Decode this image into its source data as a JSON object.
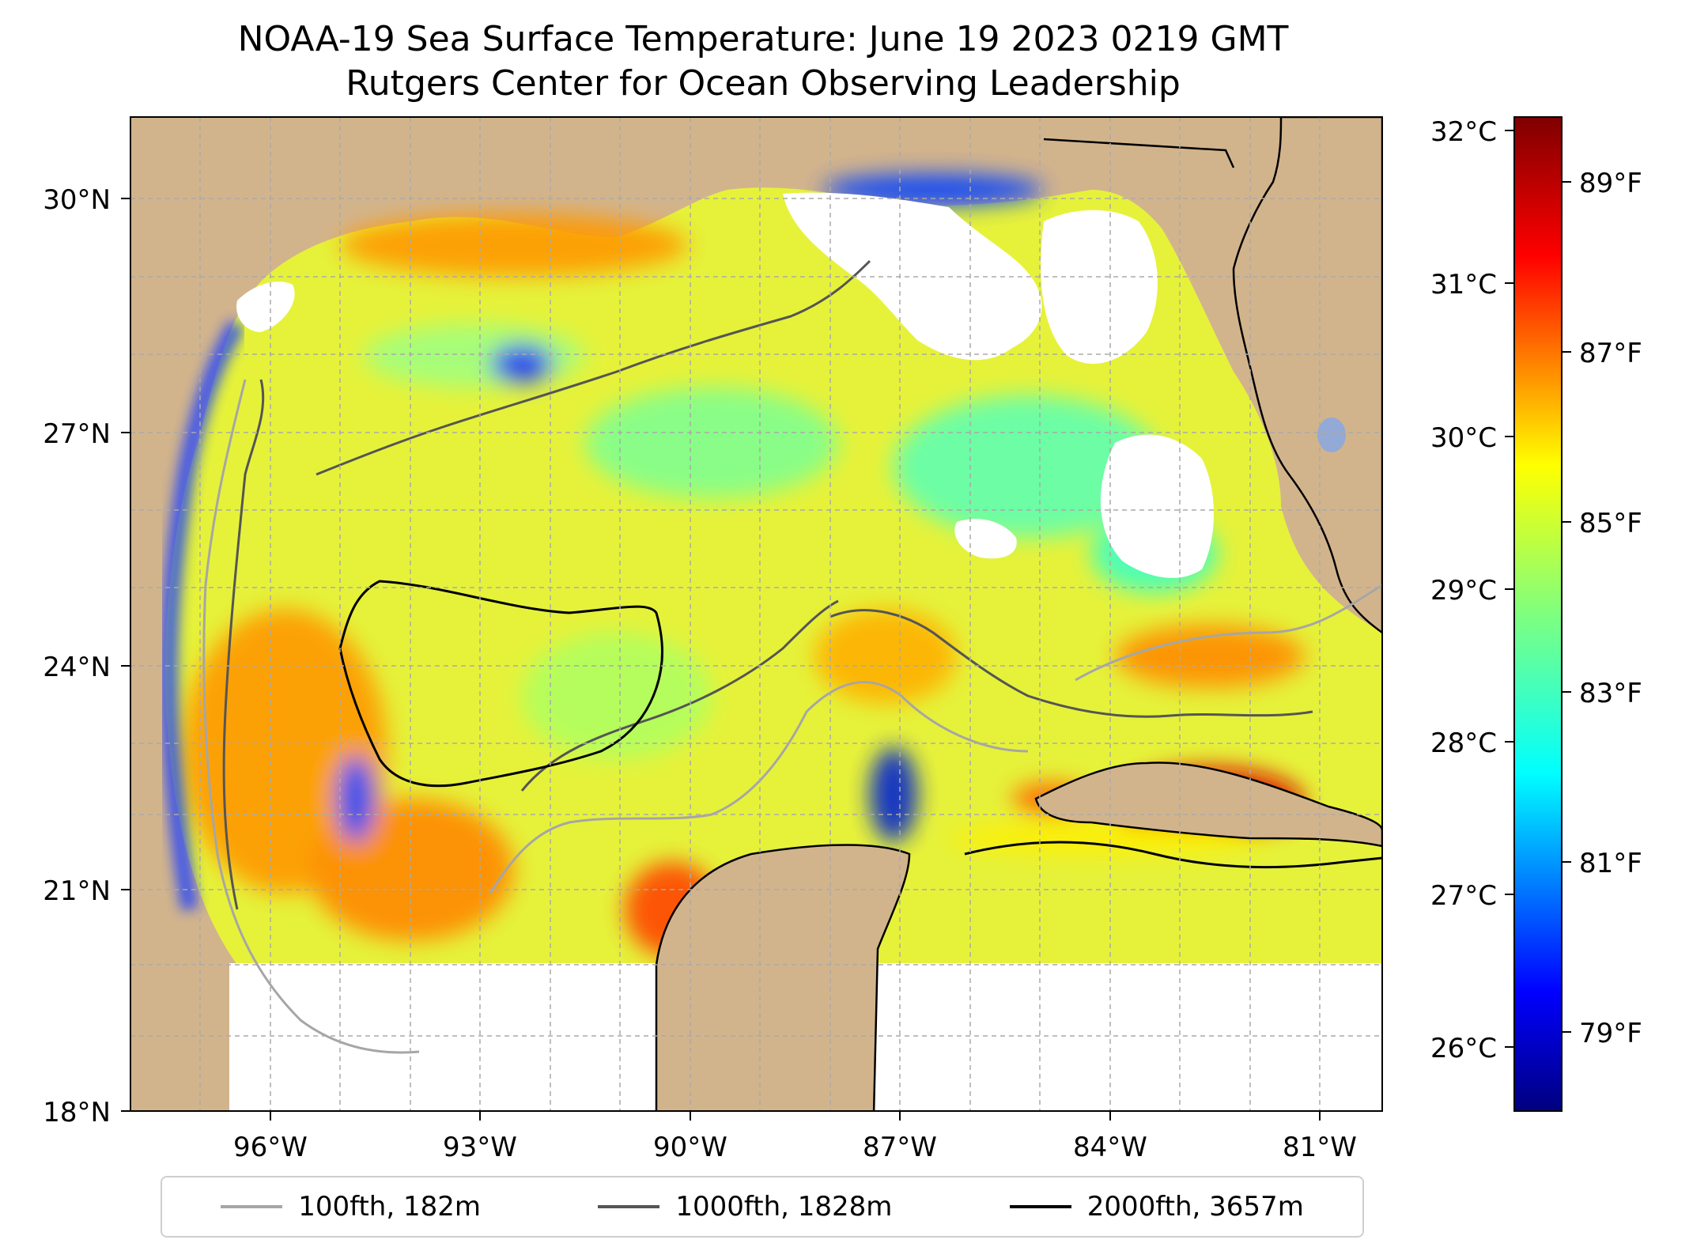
{
  "title": {
    "line1": "NOAA-19 Sea Surface Temperature: June 19 2023 0219 GMT",
    "line2": "Rutgers Center for Ocean Observing Leadership"
  },
  "map": {
    "lat_range": [
      18,
      31
    ],
    "lon_range": [
      -98,
      -80.3
    ],
    "lat_ticks": [
      "30°N",
      "27°N",
      "24°N",
      "21°N",
      "18°N"
    ],
    "lon_ticks": [
      "96°W",
      "93°W",
      "90°W",
      "87°W",
      "84°W",
      "81°W"
    ],
    "colors": {
      "land": "#d2b48c",
      "no_data": "#ffffff",
      "grid": "#aaaaaa"
    }
  },
  "colorbar": {
    "celsius_ticks": [
      "32°C",
      "31°C",
      "30°C",
      "29°C",
      "28°C",
      "27°C",
      "26°C"
    ],
    "fahrenheit_ticks": [
      "89°F",
      "87°F",
      "85°F",
      "83°F",
      "81°F",
      "79°F"
    ],
    "colormap": "jet"
  },
  "legend": {
    "items": [
      {
        "label": "100fth, 182m",
        "color": "#a6a6a6"
      },
      {
        "label": "1000fth, 1828m",
        "color": "#555555"
      },
      {
        "label": "2000fth, 3657m",
        "color": "#000000"
      }
    ]
  }
}
